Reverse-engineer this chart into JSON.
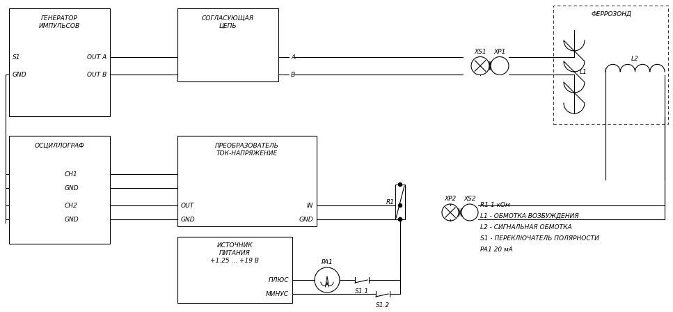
{
  "background_color": "#ffffff",
  "line_color": "#000000",
  "font_size": 6.5,
  "legend_lines": [
    "R1 1 кОм",
    "L1 - ОБМОТКА ВОЗБУЖДЕНИЯ",
    "L2 - СИГНАЛЬНАЯ ОБМОТКА",
    "S1 - ПЕРЕКЛЮЧАТЕЛЬ ПОЛЯРНОСТИ",
    "PA1 20 мА"
  ],
  "gen_label": "ГЕНЕРАТОР\nИМПУЛЬСОВ",
  "match_label": "СОГЛАСУЮЩАЯ\nЦЕПЬ",
  "osc_label": "ОСЦИЛЛОГРАФ",
  "conv_label": "ПРЕОБРАЗОВАТЕЛЬ\nТОК-НАПРЯЖЕНИЕ",
  "pwr_label": "ИСТОЧНИК\nПИТАНИЯ\n+1.25 ... +19 В",
  "fz_label": "ФЕРРОЗОНД"
}
